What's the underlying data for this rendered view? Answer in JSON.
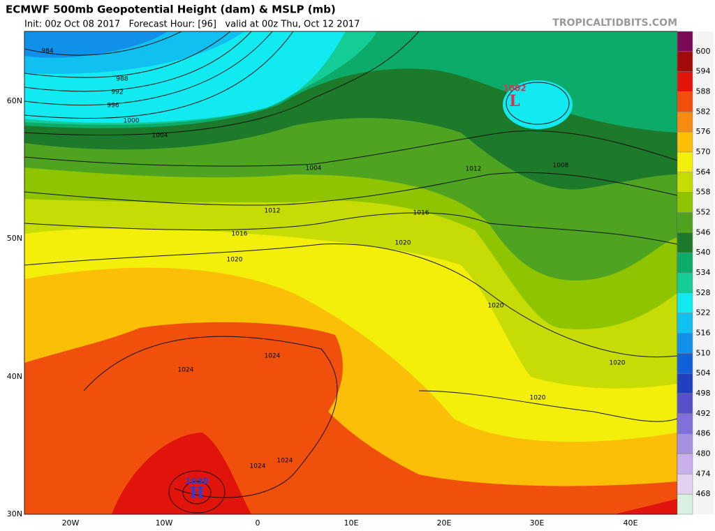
{
  "header": {
    "title": "ECMWF 500mb Geopotential Height (dam) & MSLP (mb)",
    "subtitle": "Init: 00z Oct 08 2017   Forecast Hour: [96]   valid at 00z Thu, Oct 12 2017",
    "source": "TROPICALTIDBITS.COM"
  },
  "map": {
    "lat_labels": [
      "60N",
      "50N",
      "40N",
      "30N"
    ],
    "lon_labels": [
      "20W",
      "10W",
      "0",
      "10E",
      "20E",
      "30E",
      "40E"
    ],
    "isobar_labels": [
      984,
      988,
      992,
      996,
      1000,
      1004,
      1004,
      1012,
      1016,
      1020,
      1016,
      1020,
      1012,
      1008,
      1024,
      1024,
      1024,
      1024,
      1020,
      1020,
      1020
    ],
    "pressure_centers": [
      {
        "label": "L",
        "value": 1002,
        "color": "#e03050"
      },
      {
        "label": "H",
        "value": 1030,
        "color": "#2040e0"
      }
    ]
  },
  "colorbar": {
    "levels": [
      600,
      594,
      588,
      582,
      576,
      570,
      564,
      558,
      552,
      546,
      540,
      534,
      528,
      522,
      516,
      510,
      504,
      498,
      492,
      486,
      480,
      474,
      468
    ],
    "colors": [
      "#7a0a55",
      "#a50a0a",
      "#e0140a",
      "#f0500c",
      "#f78a10",
      "#fbbf08",
      "#f3ee0a",
      "#c7dc05",
      "#8ec400",
      "#4ea420",
      "#1d7a2a",
      "#0cab6a",
      "#14cc96",
      "#10eaf0",
      "#10c0f0",
      "#1090e8",
      "#1060d8",
      "#2040c0",
      "#5850c8",
      "#8070d8",
      "#a890e0",
      "#c8b0ea",
      "#e4d0f0",
      "#d8f0e0"
    ]
  }
}
